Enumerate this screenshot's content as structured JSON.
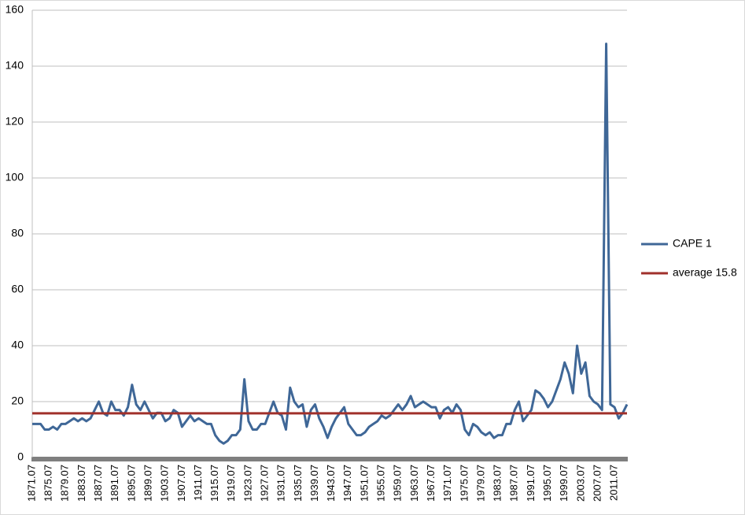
{
  "chart_data": {
    "type": "line",
    "categories": [
      "1871.07",
      null,
      null,
      null,
      "1875.07",
      null,
      null,
      null,
      "1879.07",
      null,
      null,
      null,
      "1883.07",
      null,
      null,
      null,
      "1887.07",
      null,
      null,
      null,
      "1891.07",
      null,
      null,
      null,
      "1895.07",
      null,
      null,
      null,
      "1899.07",
      null,
      null,
      null,
      "1903.07",
      null,
      null,
      null,
      "1907.07",
      null,
      null,
      null,
      "1911.07",
      null,
      null,
      null,
      "1915.07",
      null,
      null,
      null,
      "1919.07",
      null,
      null,
      null,
      "1923.07",
      null,
      null,
      null,
      "1927.07",
      null,
      null,
      null,
      "1931.07",
      null,
      null,
      null,
      "1935.07",
      null,
      null,
      null,
      "1939.07",
      null,
      null,
      null,
      "1943.07",
      null,
      null,
      null,
      "1947.07",
      null,
      null,
      null,
      "1951.07",
      null,
      null,
      null,
      "1955.07",
      null,
      null,
      null,
      "1959.07",
      null,
      null,
      null,
      "1963.07",
      null,
      null,
      null,
      "1967.07",
      null,
      null,
      null,
      "1971.07",
      null,
      null,
      null,
      "1975.07",
      null,
      null,
      null,
      "1979.07",
      null,
      null,
      null,
      "1983.07",
      null,
      null,
      null,
      "1987.07",
      null,
      null,
      null,
      "1991.07",
      null,
      null,
      null,
      "1995.07",
      null,
      null,
      null,
      "1999.07",
      null,
      null,
      null,
      "2003.07",
      null,
      null,
      null,
      "2007.07",
      null,
      null,
      null,
      "2011.07",
      null,
      null,
      null
    ],
    "series": [
      {
        "name": "CAPE 1",
        "color": "#3f6797",
        "values": [
          12,
          12,
          12,
          10,
          10,
          11,
          10,
          12,
          12,
          13,
          14,
          13,
          14,
          13,
          14,
          17,
          20,
          16,
          15,
          20,
          17,
          17,
          15,
          18,
          26,
          19,
          17,
          20,
          17,
          14,
          16,
          16,
          13,
          14,
          17,
          16,
          11,
          13,
          15,
          13,
          14,
          13,
          12,
          12,
          8,
          6,
          5,
          6,
          8,
          8,
          10,
          28,
          13,
          10,
          10,
          12,
          12,
          16,
          20,
          16,
          15,
          10,
          25,
          20,
          18,
          19,
          11,
          17,
          19,
          14,
          11,
          7,
          11,
          14,
          16,
          18,
          12,
          10,
          8,
          8,
          9,
          11,
          12,
          13,
          15,
          14,
          15,
          17,
          19,
          17,
          19,
          22,
          18,
          19,
          20,
          19,
          18,
          18,
          14,
          17,
          18,
          16,
          19,
          17,
          10,
          8,
          12,
          11,
          9,
          8,
          9,
          7,
          8,
          8,
          12,
          12,
          17,
          20,
          13,
          15,
          17,
          24,
          23,
          21,
          18,
          20,
          24,
          28,
          34,
          30,
          23,
          40,
          30,
          34,
          22,
          20,
          19,
          17,
          148,
          19,
          18,
          14,
          16,
          19
        ]
      },
      {
        "name": "average 15.8",
        "color": "#a0302b",
        "values": [
          15.8,
          15.8,
          15.8,
          15.8,
          15.8,
          15.8,
          15.8,
          15.8,
          15.8,
          15.8,
          15.8,
          15.8,
          15.8,
          15.8,
          15.8,
          15.8,
          15.8,
          15.8,
          15.8,
          15.8,
          15.8,
          15.8,
          15.8,
          15.8,
          15.8,
          15.8,
          15.8,
          15.8,
          15.8,
          15.8,
          15.8,
          15.8,
          15.8,
          15.8,
          15.8,
          15.8,
          15.8,
          15.8,
          15.8,
          15.8,
          15.8,
          15.8,
          15.8,
          15.8,
          15.8,
          15.8,
          15.8,
          15.8,
          15.8,
          15.8,
          15.8,
          15.8,
          15.8,
          15.8,
          15.8,
          15.8,
          15.8,
          15.8,
          15.8,
          15.8,
          15.8,
          15.8,
          15.8,
          15.8,
          15.8,
          15.8,
          15.8,
          15.8,
          15.8,
          15.8,
          15.8,
          15.8,
          15.8,
          15.8,
          15.8,
          15.8,
          15.8,
          15.8,
          15.8,
          15.8,
          15.8,
          15.8,
          15.8,
          15.8,
          15.8,
          15.8,
          15.8,
          15.8,
          15.8,
          15.8,
          15.8,
          15.8,
          15.8,
          15.8,
          15.8,
          15.8,
          15.8,
          15.8,
          15.8,
          15.8,
          15.8,
          15.8,
          15.8,
          15.8,
          15.8,
          15.8,
          15.8,
          15.8,
          15.8,
          15.8,
          15.8,
          15.8,
          15.8,
          15.8,
          15.8,
          15.8,
          15.8,
          15.8,
          15.8,
          15.8,
          15.8,
          15.8,
          15.8,
          15.8,
          15.8,
          15.8,
          15.8,
          15.8,
          15.8,
          15.8,
          15.8,
          15.8,
          15.8,
          15.8,
          15.8,
          15.8,
          15.8,
          15.8,
          15.8,
          15.8,
          15.8,
          15.8,
          15.8,
          15.8
        ]
      }
    ],
    "ylim": [
      0,
      160
    ],
    "yticks": [
      0,
      20,
      40,
      60,
      80,
      100,
      120,
      140,
      160
    ],
    "grid": true,
    "legend": "right"
  }
}
